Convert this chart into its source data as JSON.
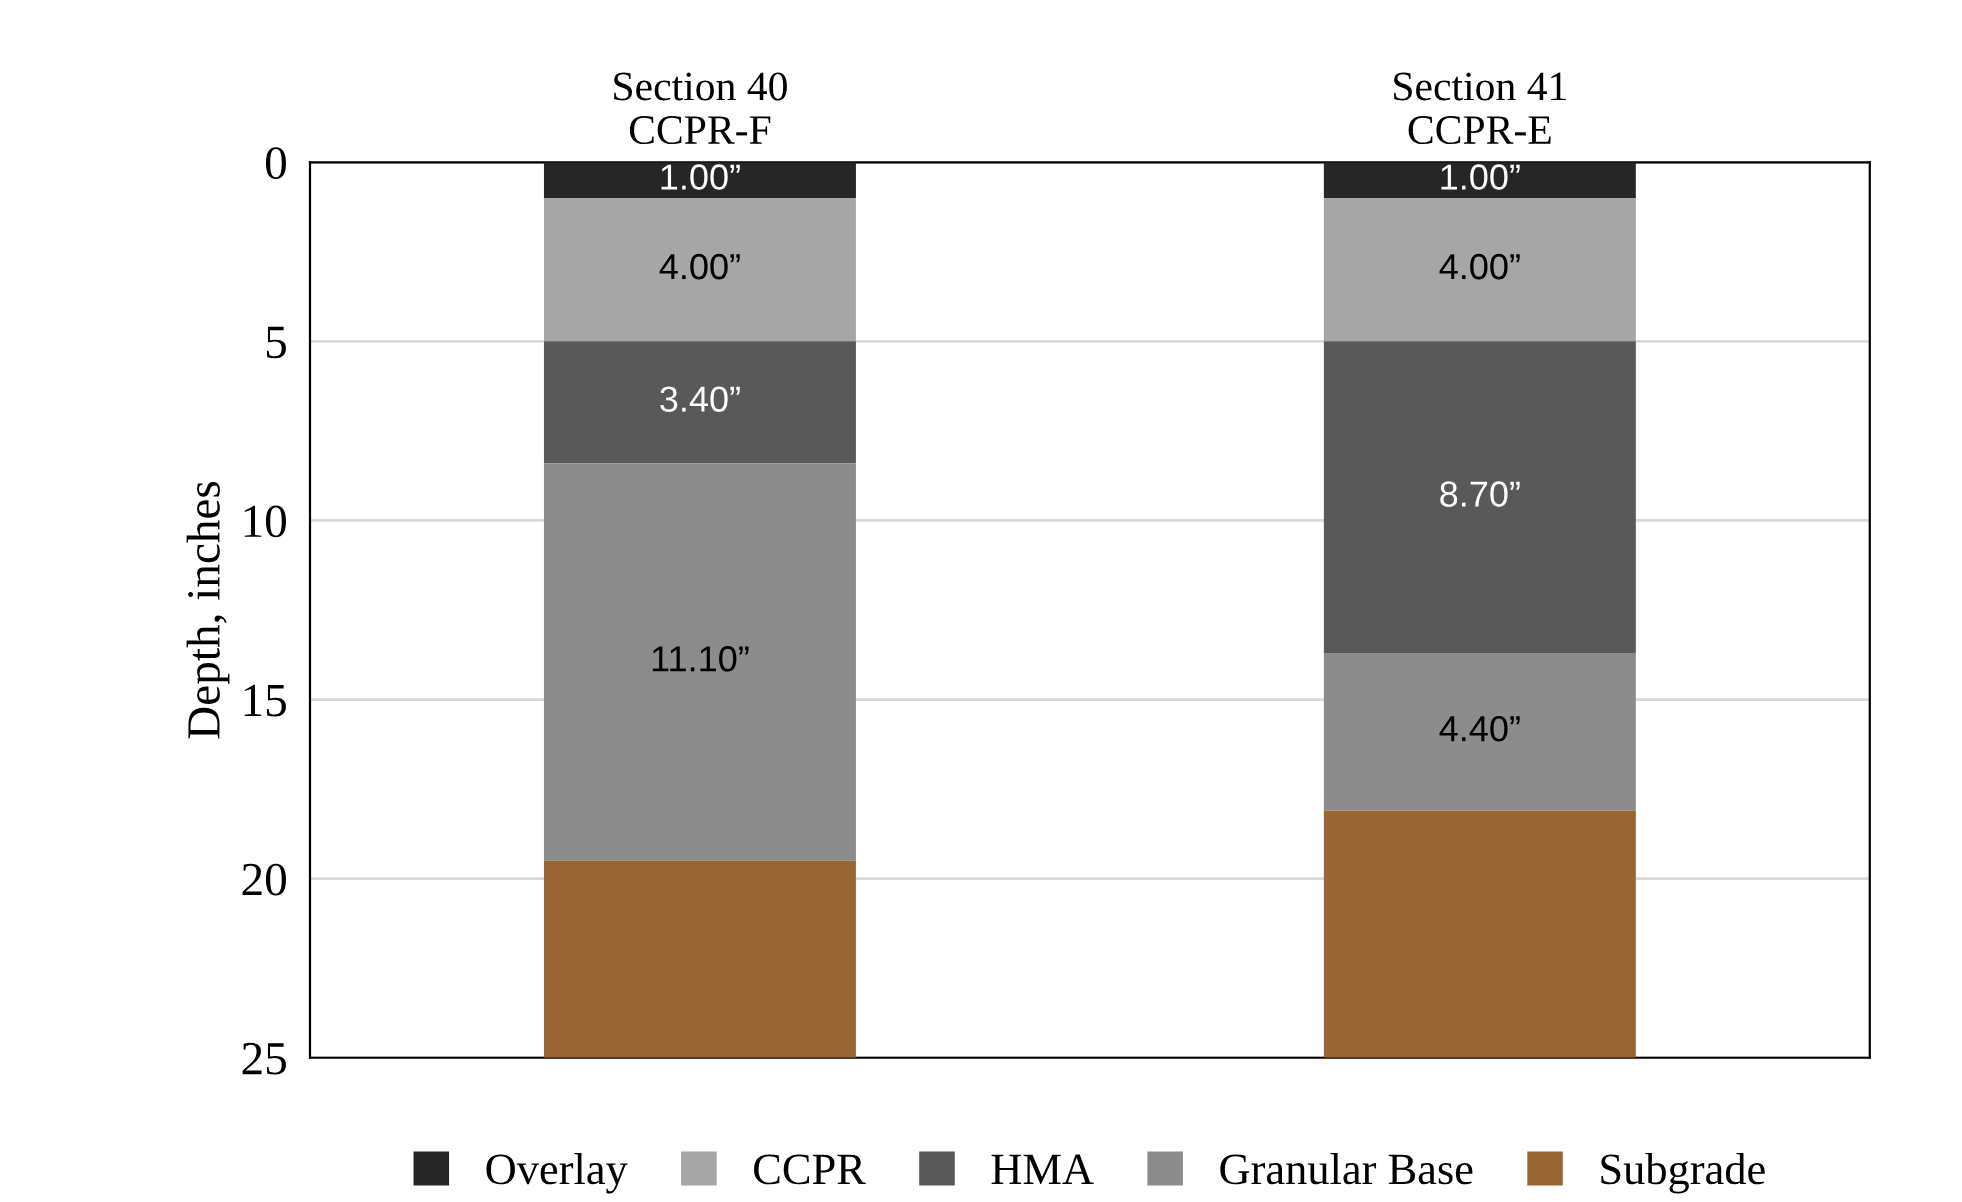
{
  "chart_data": {
    "type": "bar",
    "stacked": true,
    "ylabel": "Depth, inches",
    "categories": [
      "Section 40\nCCPR-F",
      "Section 41\nCCPR-E"
    ],
    "series": [
      {
        "name": "Overlay",
        "color": "#262626",
        "values": [
          1.0,
          1.0
        ],
        "value_labels": [
          "1.00”",
          "1.00”"
        ]
      },
      {
        "name": "CCPR",
        "color": "#a6a6a6",
        "values": [
          4.0,
          4.0
        ],
        "value_labels": [
          "4.00”",
          "4.00”"
        ]
      },
      {
        "name": "HMA",
        "color": "#595959",
        "values": [
          3.4,
          8.7
        ],
        "value_labels": [
          "3.40”",
          "8.70”"
        ]
      },
      {
        "name": "Granular Base",
        "color": "#8c8c8c",
        "values": [
          11.1,
          4.4
        ],
        "value_labels": [
          "11.10”",
          "4.40”"
        ]
      },
      {
        "name": "Subgrade",
        "color": "#996633",
        "values": [
          5.5,
          6.9
        ]
      }
    ],
    "ylim": [
      25,
      0
    ],
    "yticks": [
      0,
      5,
      10,
      15,
      20,
      25
    ],
    "grid": "y",
    "legend": "bottom"
  }
}
